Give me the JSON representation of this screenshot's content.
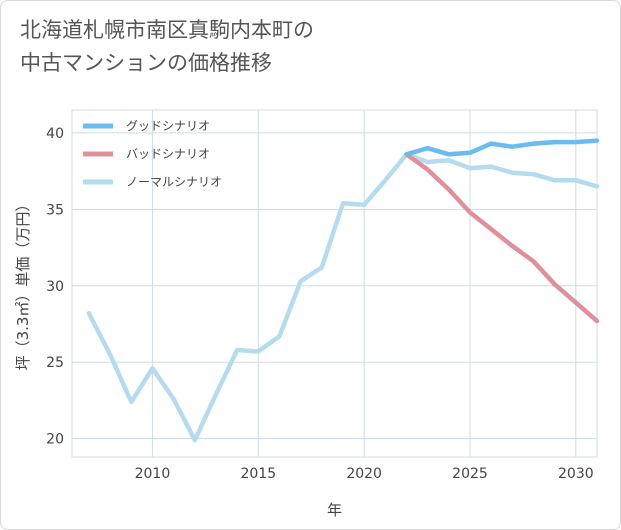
{
  "title": {
    "line1": "北海道札幌市南区真駒内本町の",
    "line2": "中古マンションの価格推移"
  },
  "chart_data": {
    "type": "line",
    "xlabel": "年",
    "ylabel": "坪（3.3㎡）単価（万円）",
    "xlim": [
      2006.2,
      2031
    ],
    "ylim": [
      18.8,
      41.5
    ],
    "xticks": [
      2010,
      2015,
      2020,
      2025,
      2030
    ],
    "yticks": [
      20,
      25,
      30,
      35,
      40
    ],
    "grid": true,
    "legend_position": "top-left",
    "series": [
      {
        "name": "グッドシナリオ",
        "color": "#6bbcee",
        "x": [
          2022,
          2023,
          2024,
          2025,
          2026,
          2027,
          2028,
          2029,
          2030,
          2031
        ],
        "values": [
          38.6,
          39.0,
          38.6,
          38.7,
          39.3,
          39.1,
          39.3,
          39.4,
          39.4,
          39.5
        ]
      },
      {
        "name": "バッドシナリオ",
        "color": "#e0909a",
        "x": [
          2022,
          2023,
          2024,
          2025,
          2026,
          2027,
          2028,
          2029,
          2030,
          2031
        ],
        "values": [
          38.6,
          37.6,
          36.3,
          34.8,
          33.7,
          32.6,
          31.6,
          30.1,
          28.9,
          27.7
        ]
      },
      {
        "name": "ノーマルシナリオ",
        "color": "#b5dcee",
        "x": [
          2007,
          2008,
          2009,
          2010,
          2011,
          2012,
          2013,
          2014,
          2015,
          2016,
          2017,
          2018,
          2019,
          2020,
          2021,
          2022,
          2023,
          2024,
          2025,
          2026,
          2027,
          2028,
          2029,
          2030,
          2031
        ],
        "values": [
          28.2,
          25.5,
          22.4,
          24.6,
          22.6,
          19.9,
          22.9,
          25.8,
          25.7,
          26.7,
          30.3,
          31.2,
          35.4,
          35.3,
          36.9,
          38.6,
          38.1,
          38.2,
          37.7,
          37.8,
          37.4,
          37.3,
          36.9,
          36.9,
          36.5
        ]
      }
    ]
  }
}
